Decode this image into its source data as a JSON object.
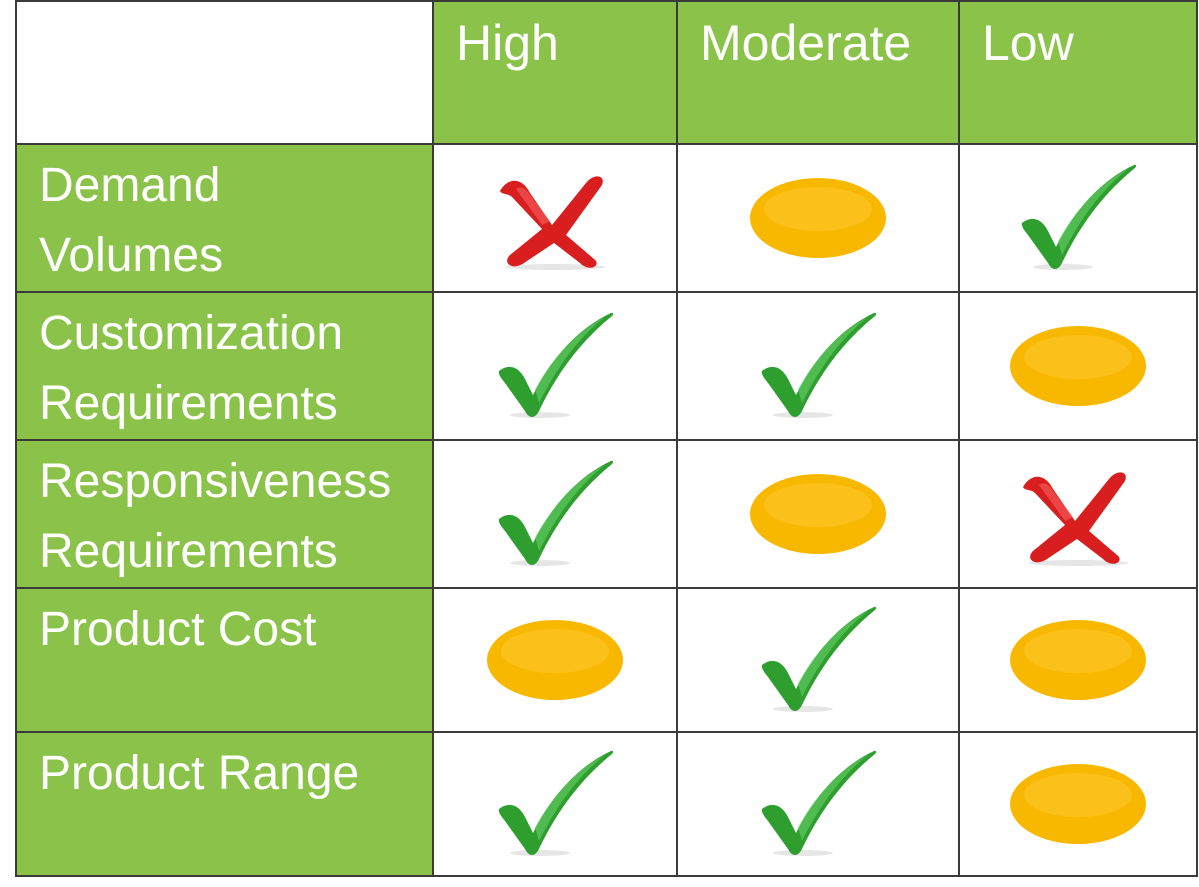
{
  "columns": [
    "High",
    "Moderate",
    "Low"
  ],
  "rows": [
    {
      "label_line1": "Demand",
      "label_line2": "Volumes",
      "marks": [
        "cross-icon",
        "oval-icon",
        "check-icon"
      ]
    },
    {
      "label_line1": "Customization",
      "label_line2": "Requirements",
      "marks": [
        "check-icon",
        "check-icon",
        "oval-icon"
      ]
    },
    {
      "label_line1": "Responsiveness",
      "label_line2": "Requirements",
      "marks": [
        "check-icon",
        "oval-icon",
        "cross-icon"
      ]
    },
    {
      "label_line1": "Product Cost",
      "label_line2": "",
      "marks": [
        "oval-icon",
        "check-icon",
        "oval-icon"
      ]
    },
    {
      "label_line1": "Product Range",
      "label_line2": "",
      "marks": [
        "check-icon",
        "check-icon",
        "oval-icon"
      ]
    }
  ],
  "colors": {
    "header_green": "#8bc34a",
    "check_green": "#2e9e2e",
    "cross_red": "#d81e1e",
    "oval_amber": "#f9b800"
  }
}
